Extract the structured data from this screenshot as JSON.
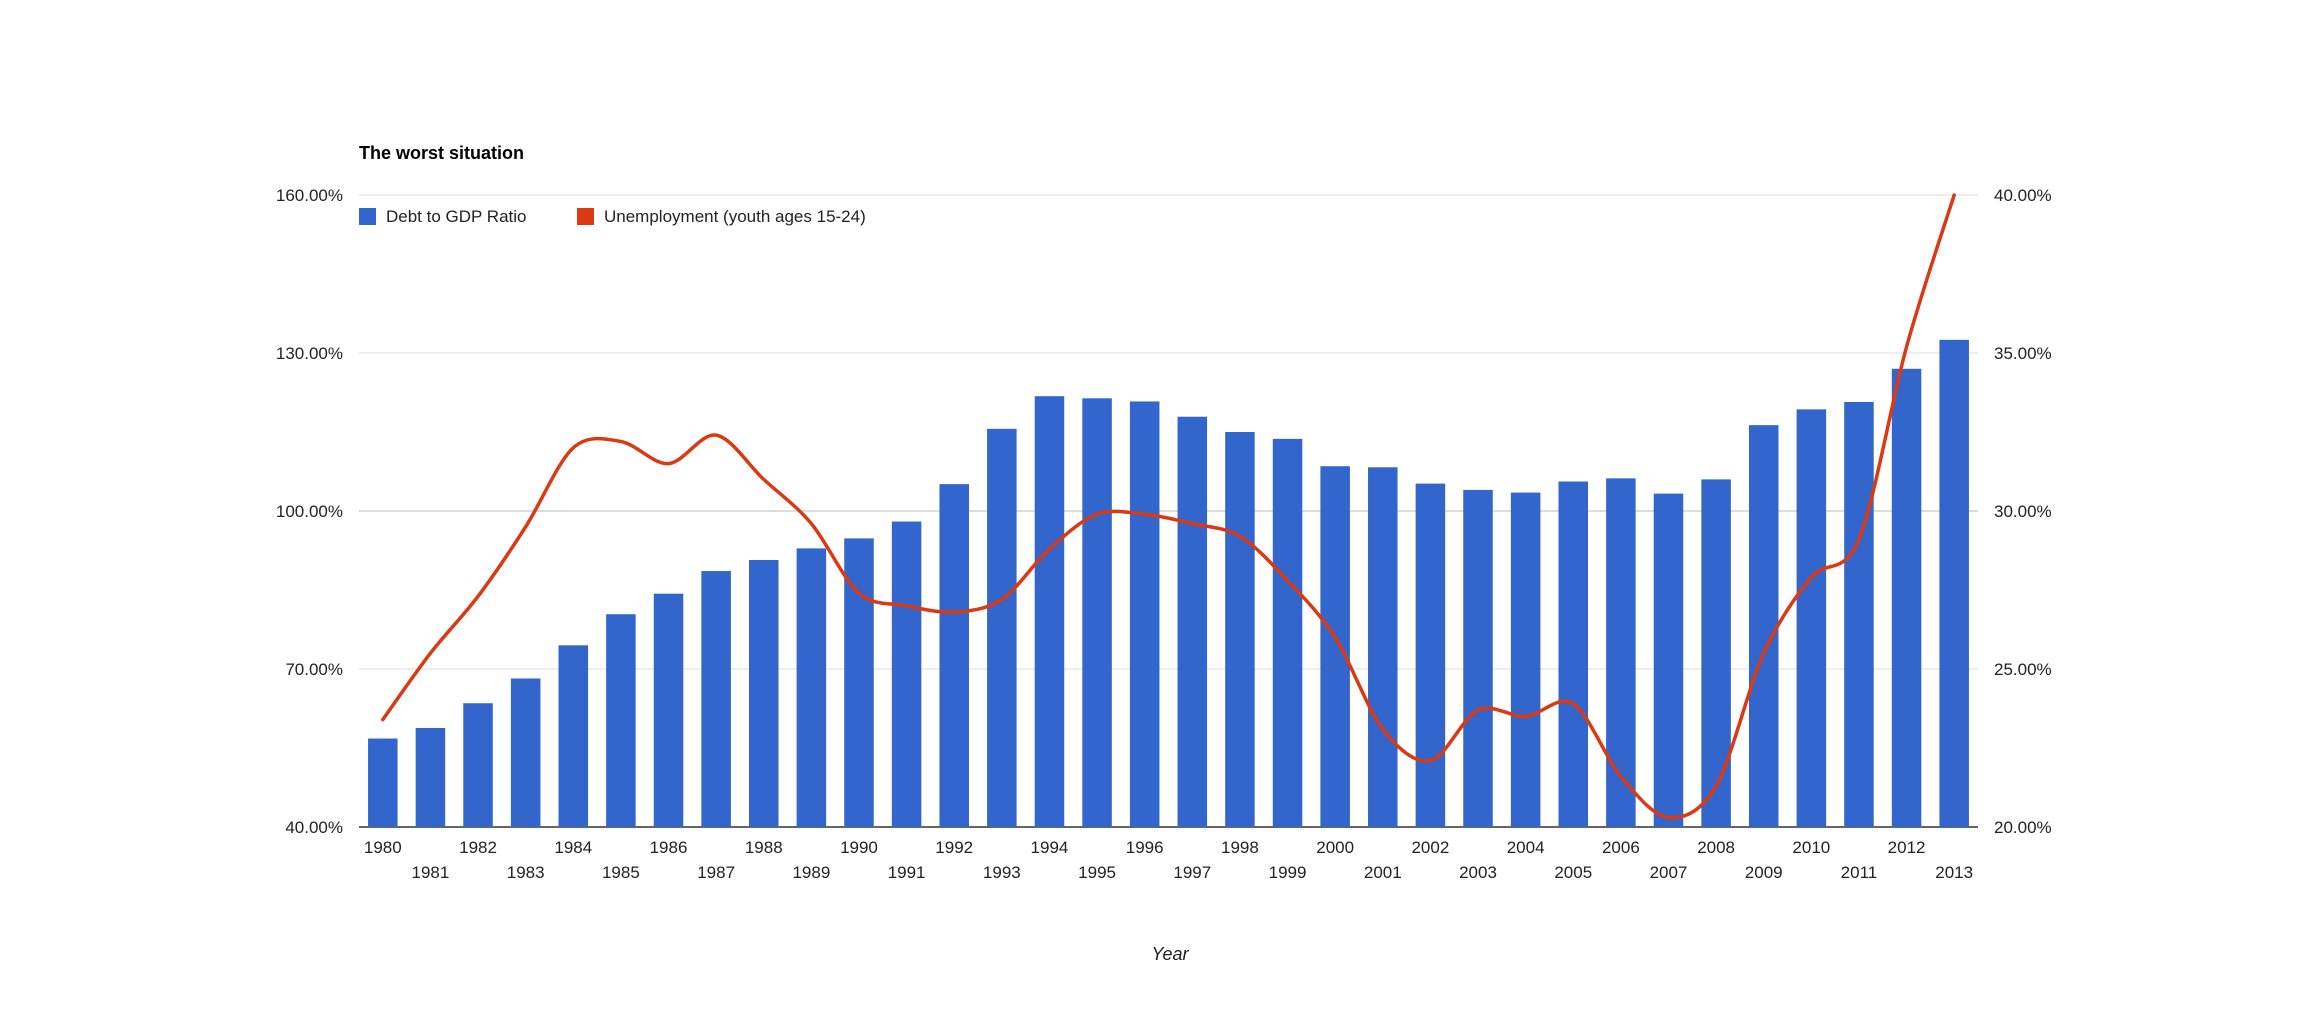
{
  "chart_data": {
    "type": "bar",
    "title": "The worst situation",
    "xlabel": "Year",
    "ylabel": "",
    "y2label": "",
    "grid": true,
    "legend_position": "top-left",
    "categories": [
      "1980",
      "1981",
      "1982",
      "1983",
      "1984",
      "1985",
      "1986",
      "1987",
      "1988",
      "1989",
      "1990",
      "1991",
      "1992",
      "1993",
      "1994",
      "1995",
      "1996",
      "1997",
      "1998",
      "1999",
      "2000",
      "2001",
      "2002",
      "2003",
      "2004",
      "2005",
      "2006",
      "2007",
      "2008",
      "2009",
      "2010",
      "2011",
      "2012",
      "2013"
    ],
    "ylim": [
      40,
      160
    ],
    "yticks": [
      "40.00%",
      "70.00%",
      "100.00%",
      "130.00%",
      "160.00%"
    ],
    "y2lim": [
      20,
      40
    ],
    "y2ticks": [
      "20.00%",
      "25.00%",
      "30.00%",
      "35.00%",
      "40.00%"
    ],
    "series": [
      {
        "name": "Debt to GDP Ratio",
        "type": "bar",
        "axis": "left",
        "color": "#3366cc",
        "values": [
          56.8,
          58.8,
          63.5,
          68.2,
          74.5,
          80.4,
          84.3,
          88.6,
          90.7,
          92.9,
          94.8,
          98.0,
          105.1,
          115.6,
          121.8,
          121.4,
          120.8,
          117.9,
          115.0,
          113.7,
          108.5,
          108.3,
          105.2,
          104.0,
          103.5,
          105.6,
          106.2,
          103.3,
          106.0,
          116.3,
          119.3,
          120.7,
          127.0,
          132.5
        ]
      },
      {
        "name": "Unemployment (youth ages 15-24)",
        "type": "line",
        "axis": "right",
        "color": "#dc3912",
        "values": [
          23.4,
          25.5,
          27.3,
          29.5,
          32.0,
          32.2,
          31.5,
          32.4,
          31.0,
          29.6,
          27.4,
          27.0,
          26.8,
          27.2,
          28.8,
          29.9,
          29.9,
          29.6,
          29.2,
          27.8,
          26.0,
          23.1,
          22.1,
          23.7,
          23.5,
          23.9,
          21.6,
          20.3,
          21.3,
          25.5,
          27.9,
          29.1,
          35.2,
          40.0
        ]
      }
    ]
  }
}
